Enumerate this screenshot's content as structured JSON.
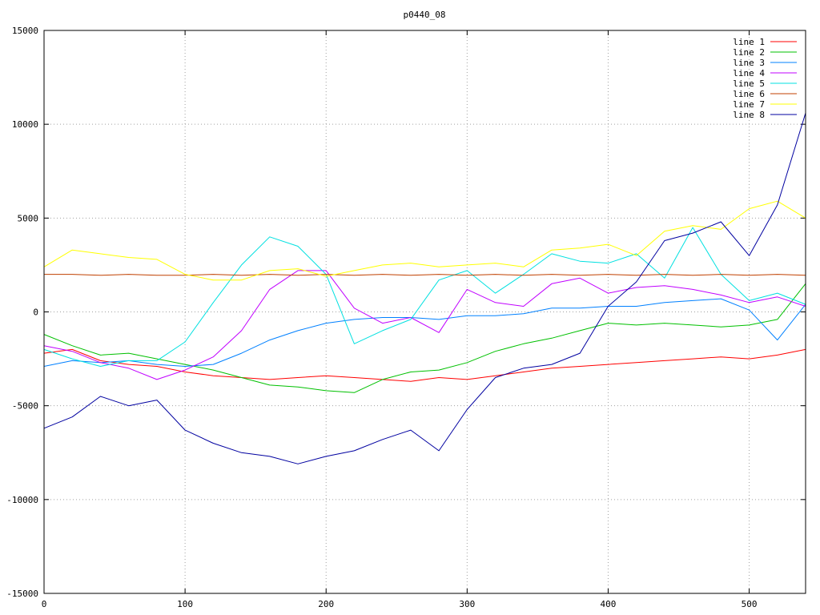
{
  "chart_data": {
    "type": "line",
    "title": "p0440_08",
    "xlabel": "",
    "ylabel": "",
    "xlim": [
      0,
      540
    ],
    "ylim": [
      -15000,
      15000
    ],
    "x_ticks": [
      0,
      100,
      200,
      300,
      400,
      500
    ],
    "y_ticks": [
      -15000,
      -10000,
      -5000,
      0,
      5000,
      10000,
      15000
    ],
    "grid": true,
    "legend_position": "top-right",
    "x": [
      0,
      20,
      40,
      60,
      80,
      100,
      120,
      140,
      160,
      180,
      200,
      220,
      240,
      260,
      280,
      300,
      320,
      340,
      360,
      380,
      400,
      420,
      440,
      460,
      480,
      500,
      520,
      540
    ],
    "series": [
      {
        "name": "line 1",
        "color": "#ff0000",
        "values": [
          -2200,
          -2000,
          -2600,
          -2800,
          -2900,
          -3200,
          -3400,
          -3500,
          -3600,
          -3500,
          -3400,
          -3500,
          -3600,
          -3700,
          -3500,
          -3600,
          -3400,
          -3200,
          -3000,
          -2900,
          -2800,
          -2700,
          -2600,
          -2500,
          -2400,
          -2500,
          -2300,
          -2000
        ]
      },
      {
        "name": "line 2",
        "color": "#00c000",
        "values": [
          -1200,
          -1800,
          -2300,
          -2200,
          -2500,
          -2800,
          -3100,
          -3500,
          -3900,
          -4000,
          -4200,
          -4300,
          -3600,
          -3200,
          -3100,
          -2700,
          -2100,
          -1700,
          -1400,
          -1000,
          -600,
          -700,
          -600,
          -700,
          -800,
          -700,
          -400,
          1500
        ]
      },
      {
        "name": "line 3",
        "color": "#0080ff",
        "values": [
          -2900,
          -2600,
          -2700,
          -2600,
          -2800,
          -2900,
          -2800,
          -2200,
          -1500,
          -1000,
          -600,
          -400,
          -300,
          -300,
          -400,
          -200,
          -200,
          -100,
          200,
          200,
          300,
          300,
          500,
          600,
          700,
          100,
          -1500,
          400
        ]
      },
      {
        "name": "line 4",
        "color": "#c000ff",
        "values": [
          -1800,
          -2100,
          -2700,
          -3000,
          -3600,
          -3100,
          -2400,
          -1000,
          1200,
          2200,
          2200,
          200,
          -600,
          -300,
          -1100,
          1200,
          500,
          300,
          1500,
          1800,
          1000,
          1300,
          1400,
          1200,
          900,
          500,
          800,
          300
        ]
      },
      {
        "name": "line 5",
        "color": "#00e0e0",
        "values": [
          -2000,
          -2500,
          -2900,
          -2600,
          -2600,
          -1600,
          500,
          2500,
          4000,
          3500,
          2000,
          -1700,
          -1000,
          -400,
          1700,
          2200,
          1000,
          2000,
          3100,
          2700,
          2600,
          3100,
          1800,
          4500,
          2000,
          600,
          1000,
          400
        ]
      },
      {
        "name": "line 6",
        "color": "#c04000",
        "values": [
          2000,
          2000,
          1950,
          2000,
          1950,
          1950,
          2000,
          1950,
          2000,
          1950,
          2000,
          1950,
          2000,
          1950,
          2000,
          1950,
          2000,
          1950,
          2000,
          1950,
          2000,
          1950,
          2000,
          1950,
          2000,
          1950,
          2000,
          1950
        ]
      },
      {
        "name": "line 7",
        "color": "#ffff00",
        "values": [
          2400,
          3300,
          3100,
          2900,
          2800,
          2000,
          1700,
          1700,
          2200,
          2300,
          1900,
          2200,
          2500,
          2600,
          2400,
          2500,
          2600,
          2400,
          3300,
          3400,
          3600,
          3000,
          4300,
          4600,
          4400,
          5500,
          5900,
          5000
        ]
      },
      {
        "name": "line 8",
        "color": "#0000a0",
        "values": [
          -6200,
          -5600,
          -4500,
          -5000,
          -4700,
          -6300,
          -7000,
          -7500,
          -7700,
          -8100,
          -7700,
          -7400,
          -6800,
          -6300,
          -7400,
          -5200,
          -3500,
          -3000,
          -2800,
          -2200,
          300,
          1600,
          3800,
          4200,
          4800,
          3000,
          5700,
          10600
        ]
      }
    ]
  }
}
